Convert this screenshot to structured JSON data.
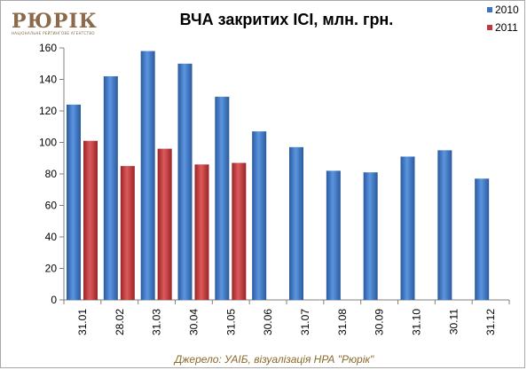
{
  "logo": {
    "main": "РЮРІК",
    "sub": "НАЦІОНАЛЬНЕ РЕЙТИНГОВЕ АГЕНТСТВО",
    "color": "#8a6a4a"
  },
  "source_text": "Джерело: УАІБ, візуалізація НРА \"Рюрік\"",
  "chart_data": {
    "type": "bar",
    "title": "ВЧА закритих ІСІ, млн. грн.",
    "xlabel": "",
    "ylabel": "",
    "categories": [
      "31.01",
      "28.02",
      "31.03",
      "30.04",
      "31.05",
      "30.06",
      "31.07",
      "31.08",
      "30.09",
      "31.10",
      "30.11",
      "31.12"
    ],
    "series": [
      {
        "name": "2010",
        "color": "#3a72c4",
        "values": [
          124,
          142,
          158,
          150,
          129,
          107,
          97,
          82,
          81,
          91,
          95,
          77
        ]
      },
      {
        "name": "2011",
        "color": "#c0393b",
        "values": [
          101,
          85,
          96,
          86,
          87,
          null,
          null,
          null,
          null,
          null,
          null,
          null
        ]
      }
    ],
    "ylim": [
      0,
      160
    ],
    "yticks": [
      0,
      20,
      40,
      60,
      80,
      100,
      120,
      140,
      160
    ],
    "grid": false,
    "legend_position": "top-right"
  }
}
